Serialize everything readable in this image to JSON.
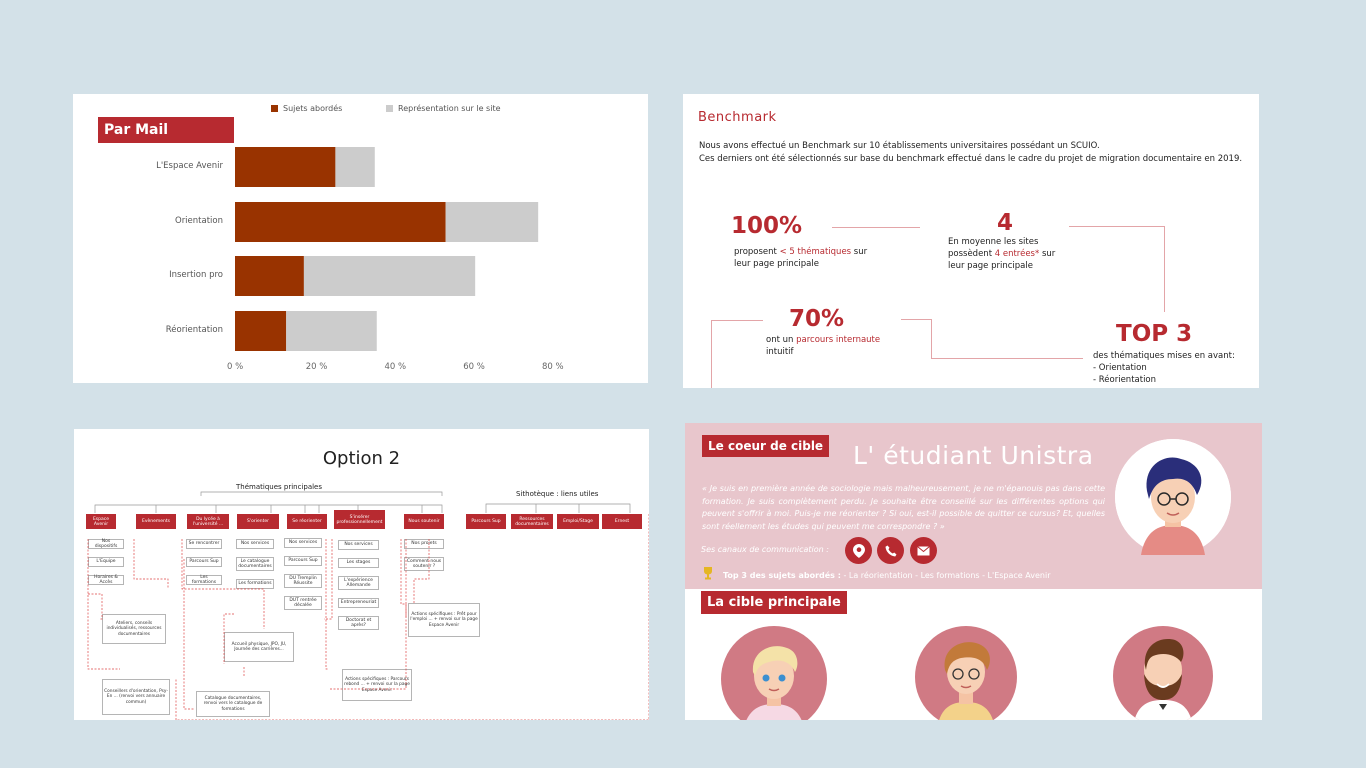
{
  "chart_panel": {
    "tag": "Par Mail",
    "legend": [
      "Sujets abordés",
      "Représentation sur le site"
    ],
    "ticks": [
      "0 %",
      "20 %",
      "40 %",
      "60 %",
      "80 %"
    ],
    "colors": {
      "sujets": "#993300",
      "representation": "#cccccc"
    }
  },
  "chart_data": {
    "type": "bar",
    "orientation": "horizontal",
    "stacked": true,
    "categories": [
      "L'Espace Avenir",
      "Orientation",
      "Insertion pro",
      "Réorientation"
    ],
    "series": [
      {
        "name": "Sujets abordés",
        "values": [
          25.5,
          53.5,
          17.5,
          13
        ]
      },
      {
        "name": "Représentation sur le site",
        "values": [
          10,
          23.5,
          43.5,
          23
        ]
      }
    ],
    "xlim": [
      0,
      80
    ],
    "xlabel": "",
    "ylabel": "",
    "title": ""
  },
  "benchmark": {
    "title": "Benchmark",
    "intro1": "Nous avons effectué un Benchmark sur 10 établissements universitaires possédant un SCUIO.",
    "intro2": "Ces derniers ont été sélectionnés sur base du benchmark effectué dans le cadre du projet de migration documentaire en 2019.",
    "stat1_num": "100%",
    "stat1_a": "proposent ",
    "stat1_b": "< 5 thématiques",
    "stat1_c": " sur leur page principale",
    "stat2_num": "4",
    "stat2_a": "En moyenne les sites possèdent ",
    "stat2_b": "4 entrées*",
    "stat2_c": " sur leur page principale",
    "stat3_num": "70%",
    "stat3_a": "ont un ",
    "stat3_b": "parcours internaute",
    "stat3_c": " intuitif",
    "stat4_num": "TOP 3",
    "stat4_a": "des thématiques mises en avant:",
    "stat4_b": "- Orientation",
    "stat4_c": "- Réorientation"
  },
  "option2": {
    "title": "Option 2",
    "thematiques": "Thématiques principales",
    "sithoteque": "Sithotèque :  liens utiles",
    "nodes": [
      "Espace Avenir",
      "Evènements",
      "Du lycée à l'université ...",
      "S'orienter",
      "Se réorienter",
      "S'insérer professionnellement",
      "Nous soutenir",
      "Parcours Sup",
      "Ressources documentaires",
      "Emploi/Stage",
      "Ernest"
    ],
    "leaves": {
      "espace": [
        "Nos dispositifs",
        "L'Equipe",
        "Horaires & Accès"
      ],
      "lycee": [
        "Se rencontrer",
        "Parcours Sup",
        "Les formations"
      ],
      "orienter": [
        "Nos services",
        "Le catalogue documentaires",
        "Les formations"
      ],
      "reorienter": [
        "Nos services",
        "Parcours Sup",
        "DU Tremplin Réussite",
        "DUT rentrée décalée"
      ],
      "inserer": [
        "Nos services",
        "Les stages",
        "L'expérience Allemande",
        "Entrepreneuriat",
        "Doctorat et après?"
      ],
      "soutenir": [
        "Nos projets",
        "Comment nous soutenir ?"
      ]
    },
    "notes": [
      "Ateliers, conseils individualisés, ressources documentaires",
      "Conseillers d'orientation, Psy-En ... (renvoi vers annuaire commun)",
      "Accueil physique, JPO, JU, Journée des carrières...",
      "Catalogue documentaires, renvoi vers le catalogue de formations",
      "Actions spécifiques : Parcours rebond ... + renvoi sur la page Espace Avenir",
      "Actions spécifiques : Prêt pour l'emploi ... + renvoi sur la page Espace Avenir"
    ]
  },
  "persona": {
    "tag": "Le coeur de cible",
    "title": "L' étudiant Unistra",
    "quote": "« Je suis en première année de sociologie mais malheureusement, je ne m'épanouis pas dans cette formation. Je suis complètement perdu. Je souhaite être conseillé sur les différentes options qui peuvent s'offrir à moi. Puis-je me réorienter ? Si oui, est-il possible de quitter ce cursus? Et, quelles sont réellement les études qui peuvent me correspondre ? »",
    "channels_label": "Ses canaux de communication :",
    "channels": [
      "location-icon",
      "phone-icon",
      "mail-icon"
    ],
    "top3_label": "Top 3 des sujets abordés :",
    "top3_items": " - La réorientation - Les formations - L'Espace Avenir",
    "tag2": "La cible principale",
    "accent": "#b72a30",
    "bg": "#e8c6cc"
  }
}
